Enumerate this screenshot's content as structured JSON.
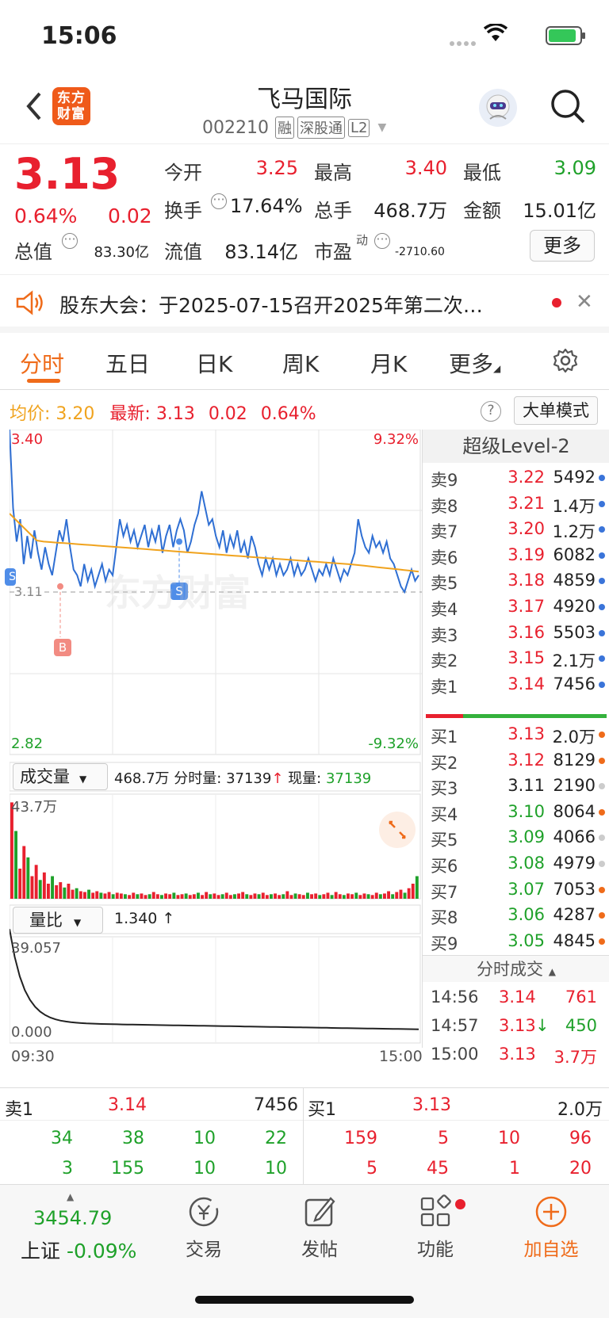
{
  "status": {
    "time": "15:06"
  },
  "nav": {
    "logo_text": "东方财富",
    "title": "飞马国际",
    "code": "002210",
    "badges": [
      "融",
      "深股通",
      "L2"
    ]
  },
  "quote": {
    "price": "3.13",
    "change_pct": "0.64%",
    "change": "0.02",
    "stats": {
      "open_label": "今开",
      "open": "3.25",
      "high_label": "最高",
      "high": "3.40",
      "low_label": "最低",
      "low": "3.09",
      "turnover_label": "换手",
      "turnover": "17.64%",
      "volume_label": "总手",
      "volume": "468.7万",
      "amount_label": "金额",
      "amount": "15.01亿",
      "mktcap_label": "总值",
      "mktcap": "83.30亿",
      "float_label": "流值",
      "float": "83.14亿",
      "pe_label": "市盈",
      "pe_sup": "动",
      "pe": "-2710.60"
    },
    "more": "更多"
  },
  "notice": {
    "text": "股东大会：于2025-07-15召开2025年第二次…"
  },
  "tabs": [
    "分时",
    "五日",
    "日K",
    "周K",
    "月K",
    "更多"
  ],
  "info": {
    "avg_label": "均价:",
    "avg": "3.20",
    "latest_label": "最新:",
    "latest": "3.13",
    "chg": "0.02",
    "pct": "0.64%",
    "mode": "大单模式"
  },
  "chart_data": {
    "type": "line",
    "y_top": "3.40",
    "y_bottom": "2.82",
    "pct_top": "9.32%",
    "pct_bottom": "-9.32%",
    "prev_close": "3.11",
    "ylim": [
      2.82,
      3.4
    ],
    "time_start": "09:30",
    "time_end": "15:00",
    "markers": [
      "B",
      "S",
      "S"
    ],
    "volume_label": "成交量",
    "volume_total": "468.7万",
    "volume_now_label": "分时量:",
    "volume_now": "37139",
    "cur_label": "现量:",
    "cur": "37139",
    "volume_max": "43.7万",
    "ratio_label": "量比",
    "ratio_value": "1.340",
    "ratio_max": "39.057",
    "ratio_min": "0.000"
  },
  "orderbook": {
    "title": "超级Level-2",
    "asks": [
      {
        "label": "卖9",
        "price": "3.22",
        "vol": "5492"
      },
      {
        "label": "卖8",
        "price": "3.21",
        "vol": "1.4万"
      },
      {
        "label": "卖7",
        "price": "3.20",
        "vol": "1.2万"
      },
      {
        "label": "卖6",
        "price": "3.19",
        "vol": "6082"
      },
      {
        "label": "卖5",
        "price": "3.18",
        "vol": "4859"
      },
      {
        "label": "卖4",
        "price": "3.17",
        "vol": "4920"
      },
      {
        "label": "卖3",
        "price": "3.16",
        "vol": "5503"
      },
      {
        "label": "卖2",
        "price": "3.15",
        "vol": "2.1万"
      },
      {
        "label": "卖1",
        "price": "3.14",
        "vol": "7456"
      }
    ],
    "bids": [
      {
        "label": "买1",
        "price": "3.13",
        "vol": "2.0万"
      },
      {
        "label": "买2",
        "price": "3.12",
        "vol": "8129"
      },
      {
        "label": "买3",
        "price": "3.11",
        "vol": "2190"
      },
      {
        "label": "买4",
        "price": "3.10",
        "vol": "8064"
      },
      {
        "label": "买5",
        "price": "3.09",
        "vol": "4066"
      },
      {
        "label": "买6",
        "price": "3.08",
        "vol": "4979"
      },
      {
        "label": "买7",
        "price": "3.07",
        "vol": "7053"
      },
      {
        "label": "买8",
        "price": "3.06",
        "vol": "4287"
      },
      {
        "label": "买9",
        "price": "3.05",
        "vol": "4845"
      }
    ],
    "ticks_title": "分时成交",
    "ticks": [
      {
        "time": "14:56",
        "price": "3.14",
        "vol": "761"
      },
      {
        "time": "14:57",
        "price": "3.13",
        "vol": "450"
      },
      {
        "time": "15:00",
        "price": "3.13",
        "vol": "3.7万"
      }
    ]
  },
  "bottom": {
    "sell_label": "卖1",
    "sell_price": "3.14",
    "sell_vol": "7456",
    "buy_label": "买1",
    "buy_price": "3.13",
    "buy_vol": "2.0万",
    "sell_row1": [
      "34",
      "38",
      "10",
      "22"
    ],
    "buy_row1": [
      "159",
      "5",
      "10",
      "96"
    ],
    "sell_row2": [
      "3",
      "155",
      "10",
      "10"
    ],
    "buy_row2": [
      "5",
      "45",
      "1",
      "20"
    ]
  },
  "footer": {
    "index_value": "3454.79",
    "index_name": "上证",
    "index_pct": "-0.09%",
    "trade": "交易",
    "post": "发帖",
    "func": "功能",
    "add": "加自选"
  },
  "colors": {
    "up": "#e8202e",
    "down": "#1fa12a",
    "accent": "#ef6b1a",
    "avg": "#f0a31e",
    "line": "#2f6fd3"
  }
}
